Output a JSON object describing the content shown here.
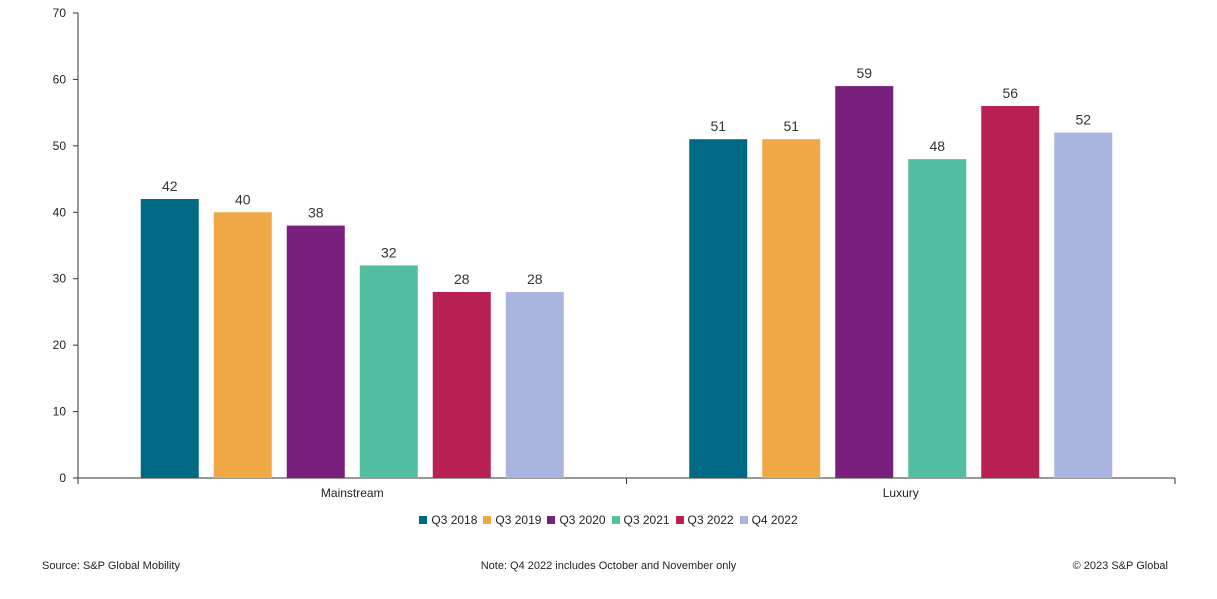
{
  "chart_data": {
    "type": "bar",
    "categories": [
      "Mainstream",
      "Luxury"
    ],
    "series": [
      {
        "name": "Q3 2018",
        "color": "#006983",
        "values": [
          42,
          51
        ]
      },
      {
        "name": "Q3 2019",
        "color": "#f0a746",
        "values": [
          40,
          51
        ]
      },
      {
        "name": "Q3 2020",
        "color": "#781e7d",
        "values": [
          38,
          59
        ]
      },
      {
        "name": "Q3 2021",
        "color": "#52bd9f",
        "values": [
          32,
          48
        ]
      },
      {
        "name": "Q3 2022",
        "color": "#b81f52",
        "values": [
          28,
          56
        ]
      },
      {
        "name": "Q4 2022",
        "color": "#aab5df",
        "values": [
          28,
          52
        ]
      }
    ],
    "ylim": [
      0,
      70
    ],
    "yticks": [
      0,
      10,
      20,
      30,
      40,
      50,
      60,
      70
    ],
    "title": "",
    "xlabel": "",
    "ylabel": "",
    "legend_position": "bottom-center"
  },
  "footer": {
    "source": "Source: S&P Global Mobility",
    "note": "Note: Q4 2022 includes October and November only",
    "copyright": "© 2023 S&P Global"
  }
}
